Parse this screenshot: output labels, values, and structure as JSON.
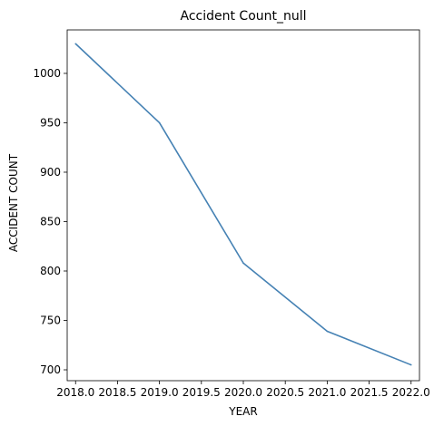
{
  "chart_data": {
    "type": "line",
    "title": "Accident Count_null",
    "xlabel": "YEAR",
    "ylabel": "ACCIDENT COUNT",
    "xlim": [
      2017.9,
      2022.1
    ],
    "ylim": [
      689,
      1044
    ],
    "x_ticks": [
      "2018.0",
      "2018.5",
      "2019.0",
      "2019.5",
      "2020.0",
      "2020.5",
      "2021.0",
      "2021.5",
      "2022.0"
    ],
    "y_ticks": [
      "700",
      "750",
      "800",
      "850",
      "900",
      "950",
      "1000"
    ],
    "grid": false,
    "series": [
      {
        "x": [
          2018,
          2019,
          2020,
          2021,
          2022
        ],
        "y": [
          1030,
          950,
          808,
          739,
          705
        ],
        "color": "#4682b4"
      }
    ]
  }
}
